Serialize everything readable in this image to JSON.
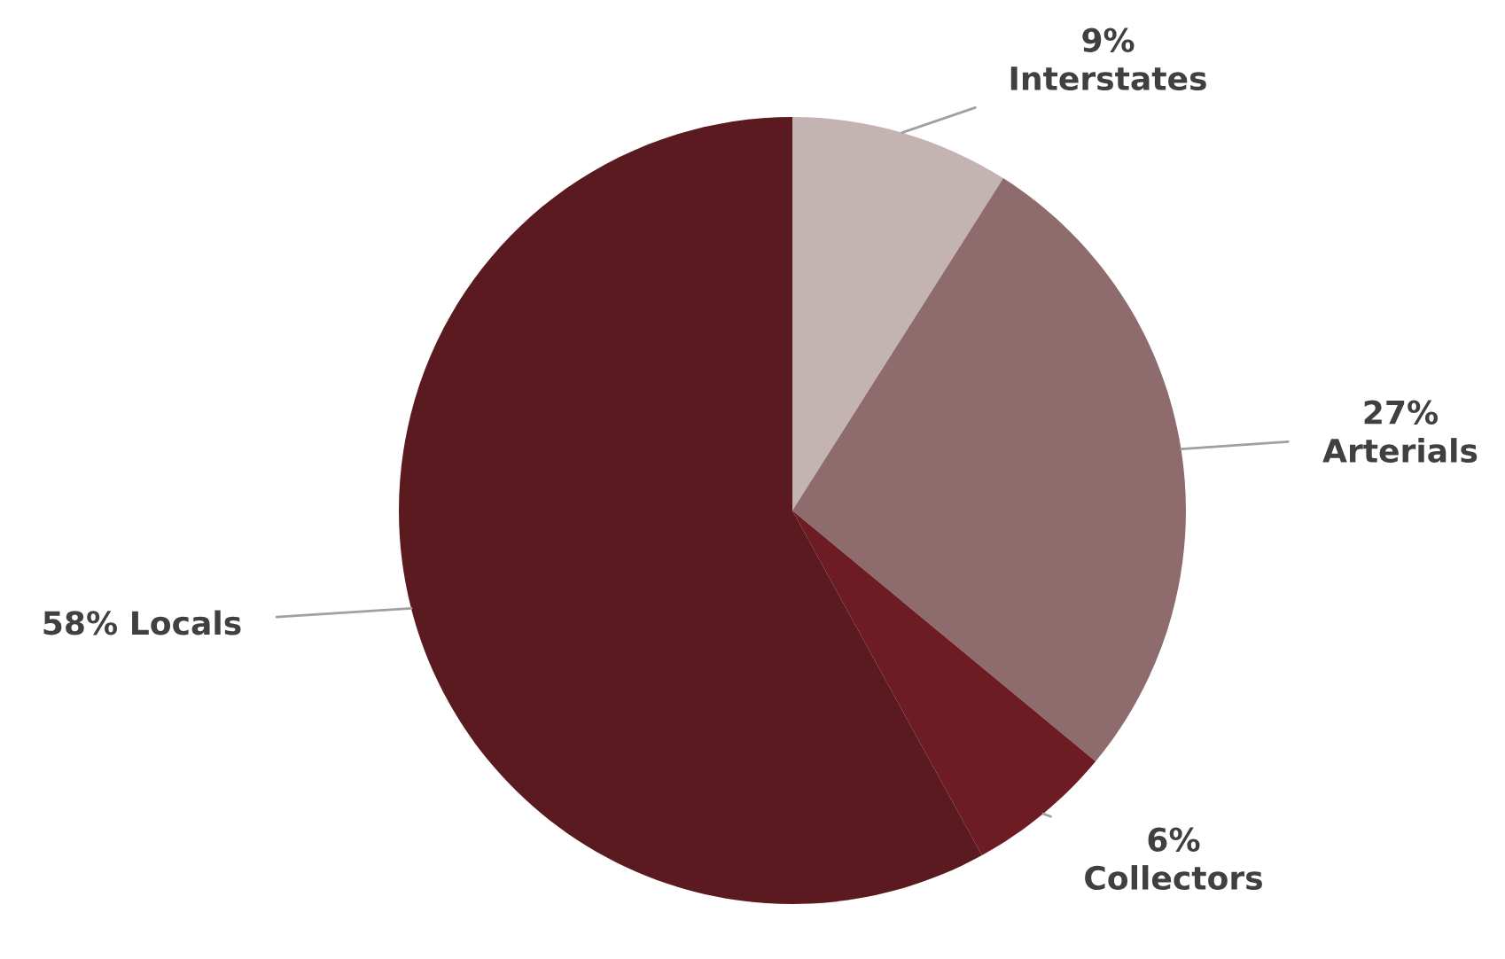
{
  "chart_data": {
    "type": "pie",
    "categories": [
      "Interstates",
      "Arterials",
      "Collectors",
      "Locals"
    ],
    "values": [
      9,
      27,
      6,
      58
    ],
    "colors": [
      "#c4b3b3",
      "#8e6b6d",
      "#6c1c22",
      "#5a1a1f"
    ],
    "value_labels": [
      "9%",
      "27%",
      "6%",
      "58%"
    ],
    "legend": false
  }
}
